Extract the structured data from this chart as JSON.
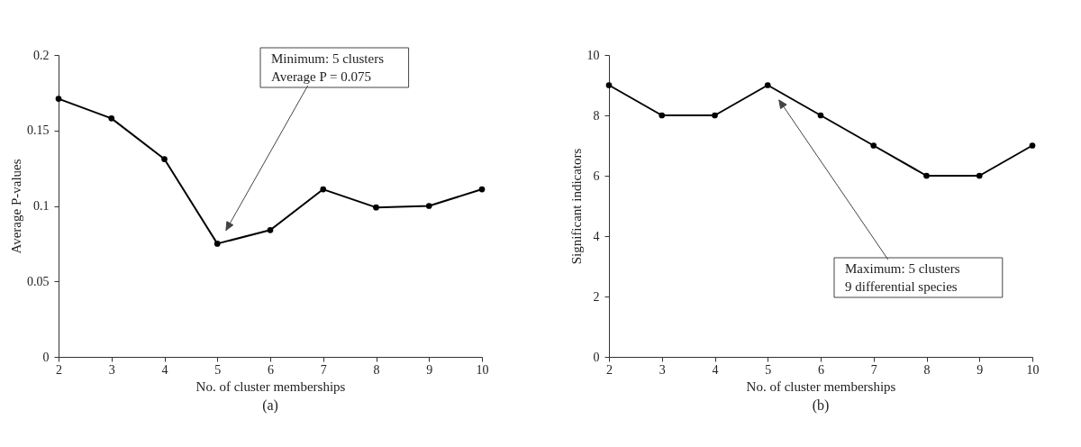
{
  "chart_data": [
    {
      "type": "line",
      "xlabel": "No. of cluster memberships",
      "ylabel": "Average P-values",
      "x": [
        2,
        3,
        4,
        5,
        6,
        7,
        8,
        9,
        10
      ],
      "xlim": [
        2,
        10
      ],
      "xticks": [
        2,
        3,
        4,
        5,
        6,
        7,
        8,
        9,
        10
      ],
      "ylim": [
        0,
        0.2
      ],
      "yticks": [
        0,
        0.05,
        0.1,
        0.15,
        0.2
      ],
      "series": [
        {
          "color": "#000000",
          "values": [
            0.171,
            0.158,
            0.131,
            0.075,
            0.084,
            0.111,
            0.099,
            0.1,
            0.111
          ]
        }
      ],
      "marker": "circle",
      "grid": false,
      "annotations": [
        "Minimum: 5 clusters\nAverage P = 0.075",
        "(a)"
      ]
    },
    {
      "type": "line",
      "xlabel": "No. of cluster memberships",
      "ylabel": "Significant indicators",
      "x": [
        2,
        3,
        4,
        5,
        6,
        7,
        8,
        9,
        10
      ],
      "xlim": [
        2,
        10
      ],
      "xticks": [
        2,
        3,
        4,
        5,
        6,
        7,
        8,
        9,
        10
      ],
      "ylim": [
        0,
        10
      ],
      "yticks": [
        0,
        2,
        4,
        6,
        8,
        10
      ],
      "series": [
        {
          "color": "#000000",
          "values": [
            9,
            8,
            8,
            9,
            8,
            7,
            6,
            6,
            7
          ]
        }
      ],
      "marker": "circle",
      "grid": false,
      "annotations": [
        "Maximum: 5 clusters\n9 differential species",
        "(b)"
      ]
    }
  ]
}
